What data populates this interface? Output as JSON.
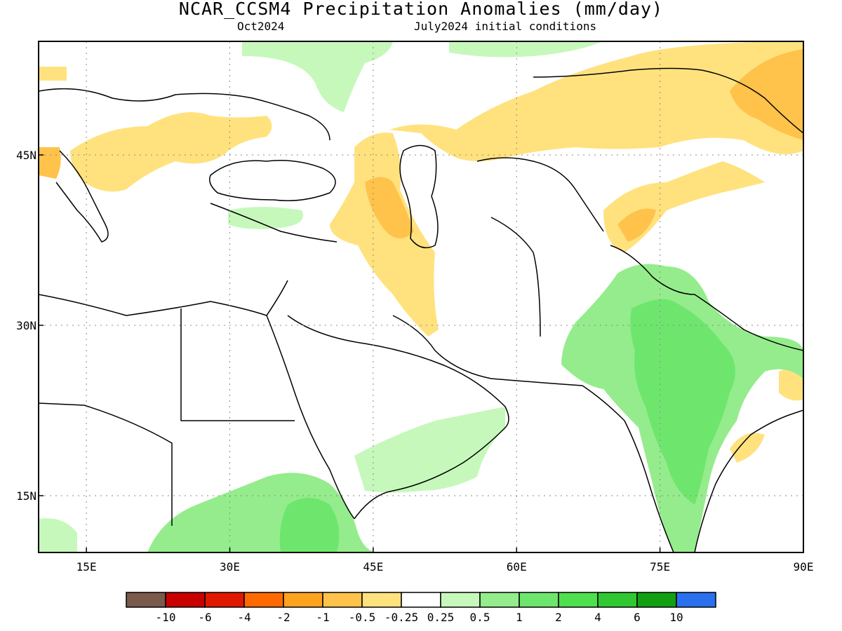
{
  "title": "NCAR_CCSM4 Precipitation Anomalies (mm/day)",
  "subtitle_left": "Oct2024",
  "subtitle_right": "July2024 initial conditions",
  "map": {
    "lon_range": [
      10,
      90
    ],
    "lat_range": [
      10,
      55
    ],
    "lon_ticks": [
      {
        "value": 15,
        "label": "15E"
      },
      {
        "value": 30,
        "label": "30E"
      },
      {
        "value": 45,
        "label": "45E"
      },
      {
        "value": 60,
        "label": "60E"
      },
      {
        "value": 75,
        "label": "75E"
      },
      {
        "value": 90,
        "label": "90E"
      }
    ],
    "lat_ticks": [
      {
        "value": 45,
        "label": "45N"
      },
      {
        "value": 30,
        "label": "30N"
      },
      {
        "value": 15,
        "label": "15N"
      }
    ],
    "gridlines": "dotted"
  },
  "colorbar": {
    "colors": [
      "#7a5a4a",
      "#c80000",
      "#e01800",
      "#ff6a00",
      "#ffa21e",
      "#ffc24a",
      "#ffe27e",
      "#ffffff",
      "#c6f8bc",
      "#95ec8c",
      "#6ee66e",
      "#4ee04e",
      "#30c830",
      "#12a012",
      "#2a70ee"
    ],
    "labels": [
      "-10",
      "-6",
      "-4",
      "-2",
      "-1",
      "-0.5",
      "-0.25",
      "0.25",
      "0.5",
      "1",
      "2",
      "4",
      "6",
      "10"
    ]
  }
}
